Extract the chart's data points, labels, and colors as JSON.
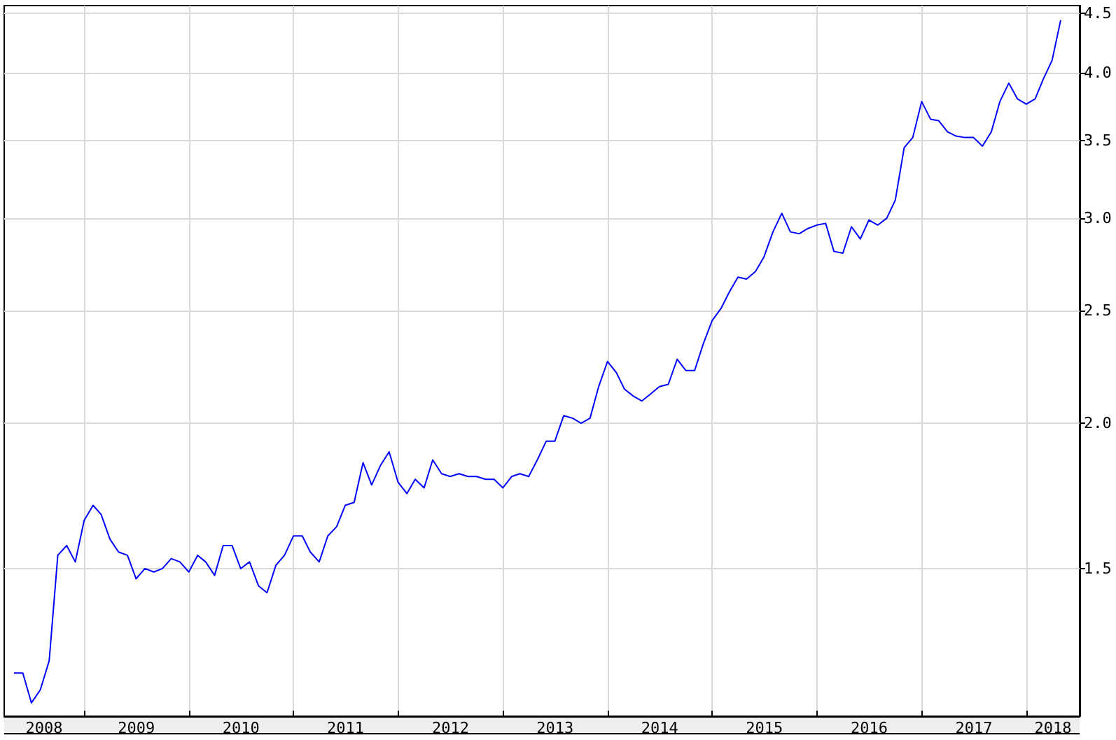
{
  "chart_data": {
    "type": "line",
    "x": [
      "2008-05",
      "2008-06",
      "2008-07",
      "2008-08",
      "2008-09",
      "2008-10",
      "2008-11",
      "2008-12",
      "2009-01",
      "2009-02",
      "2009-03",
      "2009-04",
      "2009-05",
      "2009-06",
      "2009-07",
      "2009-08",
      "2009-09",
      "2009-10",
      "2009-11",
      "2009-12",
      "2010-01",
      "2010-02",
      "2010-03",
      "2010-04",
      "2010-05",
      "2010-06",
      "2010-07",
      "2010-08",
      "2010-09",
      "2010-10",
      "2010-11",
      "2010-12",
      "2011-01",
      "2011-02",
      "2011-03",
      "2011-04",
      "2011-05",
      "2011-06",
      "2011-07",
      "2011-08",
      "2011-09",
      "2011-10",
      "2011-11",
      "2011-12",
      "2012-01",
      "2012-02",
      "2012-03",
      "2012-04",
      "2012-05",
      "2012-06",
      "2012-07",
      "2012-08",
      "2012-09",
      "2012-10",
      "2012-11",
      "2012-12",
      "2013-01",
      "2013-02",
      "2013-03",
      "2013-04",
      "2013-05",
      "2013-06",
      "2013-07",
      "2013-08",
      "2013-09",
      "2013-10",
      "2013-11",
      "2013-12",
      "2014-01",
      "2014-02",
      "2014-03",
      "2014-04",
      "2014-05",
      "2014-06",
      "2014-07",
      "2014-08",
      "2014-09",
      "2014-10",
      "2014-11",
      "2014-12",
      "2015-01",
      "2015-02",
      "2015-03",
      "2015-04",
      "2015-05",
      "2015-06",
      "2015-07",
      "2015-08",
      "2015-09",
      "2015-10",
      "2015-11",
      "2015-12",
      "2016-01",
      "2016-02",
      "2016-03",
      "2016-04",
      "2016-05",
      "2016-06",
      "2016-07",
      "2016-08",
      "2016-09",
      "2016-10",
      "2016-11",
      "2016-12",
      "2017-01",
      "2017-02",
      "2017-03",
      "2017-04",
      "2017-05",
      "2017-06",
      "2017-07",
      "2017-08",
      "2017-09",
      "2017-10",
      "2017-11",
      "2017-12",
      "2018-01",
      "2018-02",
      "2018-03",
      "2018-04",
      "2018-05"
    ],
    "series": [
      {
        "color": "#0000ff",
        "values": [
          1.22,
          1.22,
          1.15,
          1.18,
          1.25,
          1.54,
          1.57,
          1.52,
          1.65,
          1.7,
          1.67,
          1.59,
          1.55,
          1.54,
          1.47,
          1.5,
          1.49,
          1.5,
          1.53,
          1.52,
          1.49,
          1.54,
          1.52,
          1.48,
          1.57,
          1.57,
          1.5,
          1.52,
          1.45,
          1.43,
          1.51,
          1.54,
          1.6,
          1.6,
          1.55,
          1.52,
          1.6,
          1.63,
          1.7,
          1.71,
          1.85,
          1.77,
          1.84,
          1.89,
          1.78,
          1.74,
          1.79,
          1.76,
          1.86,
          1.81,
          1.8,
          1.81,
          1.8,
          1.8,
          1.79,
          1.79,
          1.76,
          1.8,
          1.81,
          1.8,
          1.86,
          1.93,
          1.93,
          2.03,
          2.02,
          2.0,
          2.02,
          2.15,
          2.26,
          2.21,
          2.14,
          2.11,
          2.09,
          2.12,
          2.15,
          2.16,
          2.27,
          2.22,
          2.22,
          2.34,
          2.45,
          2.51,
          2.59,
          2.67,
          2.66,
          2.7,
          2.78,
          2.92,
          3.03,
          2.92,
          2.91,
          2.94,
          2.96,
          2.97,
          2.81,
          2.8,
          2.95,
          2.88,
          2.99,
          2.96,
          3.0,
          3.11,
          3.45,
          3.52,
          3.78,
          3.65,
          3.64,
          3.56,
          3.53,
          3.52,
          3.52,
          3.46,
          3.56,
          3.78,
          3.92,
          3.8,
          3.76,
          3.8,
          3.95,
          4.1,
          4.44
        ]
      }
    ],
    "xlim": [
      "2008-03-28",
      "2018-07-06"
    ],
    "xticks": [
      {
        "value": "2008-08-14",
        "label": "2008"
      },
      {
        "value": "2009-01-01",
        "label": null
      },
      {
        "value": "2009-07-02",
        "label": "2009"
      },
      {
        "value": "2010-01-01",
        "label": null
      },
      {
        "value": "2010-07-02",
        "label": "2010"
      },
      {
        "value": "2011-01-01",
        "label": null
      },
      {
        "value": "2011-07-02",
        "label": "2011"
      },
      {
        "value": "2012-01-01",
        "label": null
      },
      {
        "value": "2012-07-02",
        "label": "2012"
      },
      {
        "value": "2013-01-01",
        "label": null
      },
      {
        "value": "2013-07-02",
        "label": "2013"
      },
      {
        "value": "2014-01-01",
        "label": null
      },
      {
        "value": "2014-07-02",
        "label": "2014"
      },
      {
        "value": "2015-01-01",
        "label": null
      },
      {
        "value": "2015-07-02",
        "label": "2015"
      },
      {
        "value": "2016-01-01",
        "label": null
      },
      {
        "value": "2016-07-02",
        "label": "2016"
      },
      {
        "value": "2017-01-01",
        "label": null
      },
      {
        "value": "2017-07-02",
        "label": "2017"
      },
      {
        "value": "2018-01-01",
        "label": null
      },
      {
        "value": "2018-04-04",
        "label": "2018"
      }
    ],
    "ylim": [
      1.12,
      4.57
    ],
    "yticks": [
      1.5,
      {
        "value": 2,
        "label": "2.0"
      },
      2.5,
      {
        "value": 3,
        "label": "3.0"
      },
      3.5,
      {
        "value": 4,
        "label": "4.0"
      },
      4.5
    ],
    "log": "y",
    "grid": true
  }
}
